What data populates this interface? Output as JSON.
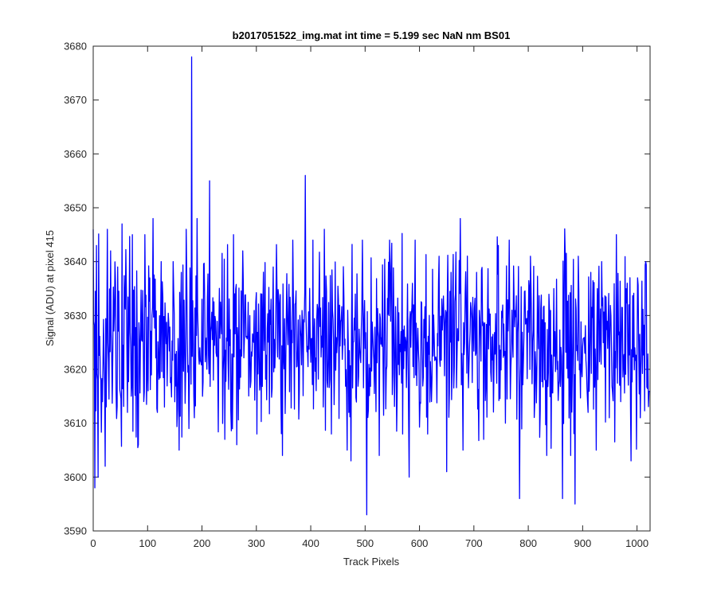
{
  "chart_data": {
    "type": "line",
    "title": "b2017051522_img.mat int time = 5.199 sec  NaN nm BS01",
    "xlabel": "Track Pixels",
    "ylabel": "Signal (ADU) at pixel 415",
    "xlim": [
      0,
      1024
    ],
    "ylim": [
      3590,
      3680
    ],
    "xticks": [
      0,
      100,
      200,
      300,
      400,
      500,
      600,
      700,
      800,
      900,
      1000
    ],
    "yticks": [
      3590,
      3600,
      3610,
      3620,
      3630,
      3640,
      3650,
      3660,
      3670,
      3680
    ],
    "line_color": "#0000ff",
    "grid": false,
    "series": [
      {
        "n_points": 1024,
        "baseline": 3625,
        "noise_range": [
          3605,
          3648
        ],
        "x": [
          0,
          3,
          6,
          9,
          14,
          17,
          22,
          26,
          32,
          45,
          53,
          63,
          72,
          83,
          95,
          110,
          118,
          125,
          131,
          147,
          158,
          162,
          171,
          176,
          181,
          186,
          191,
          201,
          214,
          221,
          242,
          258,
          264,
          275,
          301,
          331,
          348,
          367,
          390,
          404,
          425,
          438,
          470,
          474,
          495,
          503,
          526,
          545,
          569,
          581,
          592,
          615,
          636,
          650,
          675,
          680,
          705,
          718,
          745,
          758,
          765,
          784,
          804,
          834,
          863,
          868,
          878,
          886,
          892,
          910,
          915,
          925,
          935,
          949,
          962,
          970,
          982,
          989,
          1001,
          1006,
          1016,
          1023
        ],
        "y": [
          3646,
          3598,
          3643,
          3600,
          3618,
          3614,
          3602,
          3646,
          3642,
          3639,
          3647,
          3612,
          3645,
          3606,
          3645,
          3648,
          3612,
          3640,
          3613,
          3640,
          3605,
          3638,
          3646,
          3609,
          3678,
          3611,
          3648,
          3615,
          3655,
          3618,
          3607,
          3645,
          3606,
          3642,
          3608,
          3639,
          3604,
          3644,
          3656,
          3644,
          3646,
          3608,
          3612,
          3603,
          3644,
          3593,
          3604,
          3644,
          3608,
          3600,
          3644,
          3608,
          3641,
          3601,
          3648,
          3605,
          3638,
          3607,
          3643,
          3610,
          3644,
          3596,
          3641,
          3604,
          3596,
          3641,
          3604,
          3595,
          3641,
          3612,
          3638,
          3605,
          3640,
          3611,
          3645,
          3614,
          3636,
          3603,
          3637,
          3611,
          3640,
          3616
        ]
      }
    ]
  }
}
